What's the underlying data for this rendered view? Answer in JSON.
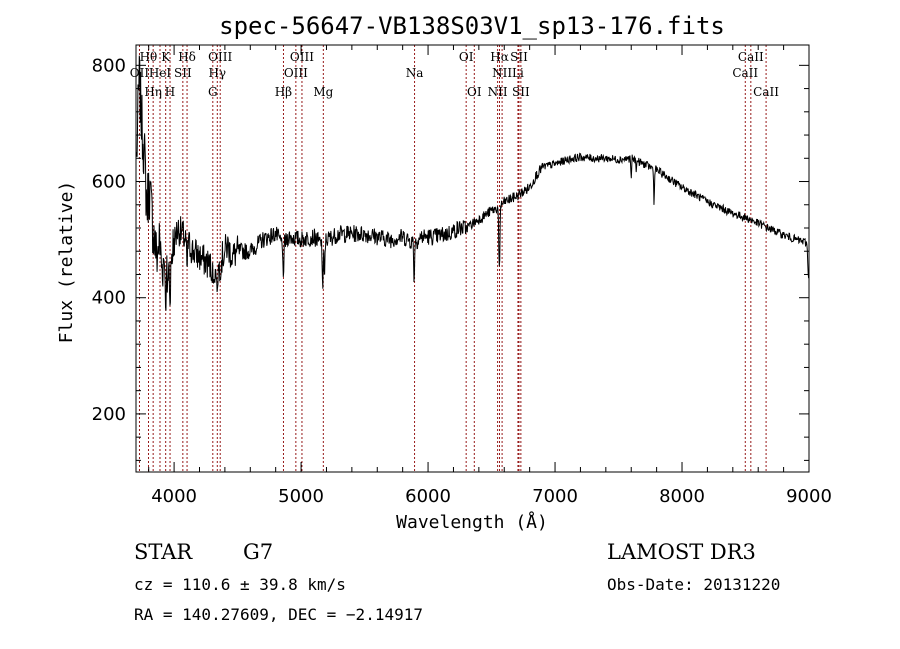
{
  "chart_data": {
    "type": "line",
    "title": "spec-56647-VB138S03V1_sp13-176.fits",
    "xlabel": "Wavelength (Å)",
    "ylabel": "Flux (relative)",
    "xlim": [
      3700,
      9000
    ],
    "ylim": [
      100,
      835
    ],
    "x_ticks": [
      4000,
      5000,
      6000,
      7000,
      8000,
      9000
    ],
    "y_ticks": [
      200,
      400,
      600,
      800
    ],
    "grid": false,
    "line_color": "#000000",
    "marker_color": "#8b0000",
    "spectrum_anchors": [
      [
        3705,
        640
      ],
      [
        3725,
        780
      ],
      [
        3745,
        700
      ],
      [
        3765,
        650
      ],
      [
        3785,
        560
      ],
      [
        3805,
        590
      ],
      [
        3825,
        540
      ],
      [
        3845,
        500
      ],
      [
        3865,
        470
      ],
      [
        3885,
        500
      ],
      [
        3905,
        450
      ],
      [
        3925,
        470
      ],
      [
        3945,
        430
      ],
      [
        3965,
        450
      ],
      [
        3985,
        480
      ],
      [
        4005,
        500
      ],
      [
        4030,
        520
      ],
      [
        4060,
        510
      ],
      [
        4090,
        500
      ],
      [
        4120,
        490
      ],
      [
        4150,
        480
      ],
      [
        4200,
        470
      ],
      [
        4260,
        460
      ],
      [
        4300,
        450
      ],
      [
        4340,
        440
      ],
      [
        4380,
        470
      ],
      [
        4420,
        490
      ],
      [
        4460,
        470
      ],
      [
        4500,
        480
      ],
      [
        4600,
        480
      ],
      [
        4700,
        500
      ],
      [
        4800,
        510
      ],
      [
        4860,
        490
      ],
      [
        4900,
        505
      ],
      [
        5000,
        500
      ],
      [
        5100,
        505
      ],
      [
        5170,
        490
      ],
      [
        5200,
        500
      ],
      [
        5300,
        510
      ],
      [
        5400,
        510
      ],
      [
        5500,
        510
      ],
      [
        5600,
        505
      ],
      [
        5700,
        500
      ],
      [
        5800,
        505
      ],
      [
        5890,
        495
      ],
      [
        5950,
        505
      ],
      [
        6050,
        505
      ],
      [
        6150,
        510
      ],
      [
        6250,
        520
      ],
      [
        6300,
        520
      ],
      [
        6400,
        535
      ],
      [
        6500,
        550
      ],
      [
        6560,
        555
      ],
      [
        6600,
        565
      ],
      [
        6700,
        575
      ],
      [
        6800,
        590
      ],
      [
        6850,
        610
      ],
      [
        6900,
        625
      ],
      [
        7000,
        630
      ],
      [
        7100,
        638
      ],
      [
        7200,
        642
      ],
      [
        7300,
        640
      ],
      [
        7400,
        640
      ],
      [
        7500,
        638
      ],
      [
        7600,
        640
      ],
      [
        7700,
        630
      ],
      [
        7800,
        620
      ],
      [
        7900,
        605
      ],
      [
        8000,
        590
      ],
      [
        8100,
        578
      ],
      [
        8200,
        565
      ],
      [
        8300,
        555
      ],
      [
        8400,
        545
      ],
      [
        8500,
        538
      ],
      [
        8600,
        528
      ],
      [
        8700,
        518
      ],
      [
        8800,
        508
      ],
      [
        8900,
        500
      ],
      [
        8980,
        495
      ],
      [
        9000,
        470
      ]
    ],
    "spectrum_dips": [
      [
        3934,
        360
      ],
      [
        3969,
        370
      ],
      [
        4102,
        440
      ],
      [
        4310,
        420
      ],
      [
        4340,
        400
      ],
      [
        4861,
        420
      ],
      [
        5170,
        400
      ],
      [
        5184,
        420
      ],
      [
        5890,
        415
      ],
      [
        6560,
        445
      ],
      [
        6563,
        450
      ],
      [
        7600,
        600
      ],
      [
        7640,
        618
      ],
      [
        7780,
        555
      ],
      [
        9000,
        420
      ]
    ],
    "lines": [
      {
        "name": "OII",
        "wave": 3727,
        "row": 2
      },
      {
        "name": "Hθ",
        "wave": 3798,
        "row": 1
      },
      {
        "name": "Hη",
        "wave": 3835,
        "row": 3
      },
      {
        "name": "HeI",
        "wave": 3889,
        "row": 2
      },
      {
        "name": "K",
        "wave": 3934,
        "row": 1
      },
      {
        "name": "H",
        "wave": 3968,
        "row": 3
      },
      {
        "name": "SII",
        "wave": 4069,
        "row": 2
      },
      {
        "name": "Hδ",
        "wave": 4102,
        "row": 1
      },
      {
        "name": "G",
        "wave": 4305,
        "row": 3
      },
      {
        "name": "Hγ",
        "wave": 4340,
        "row": 2
      },
      {
        "name": "OIII",
        "wave": 4363,
        "row": 1
      },
      {
        "name": "Hβ",
        "wave": 4861,
        "row": 3
      },
      {
        "name": "OIII",
        "wave": 4959,
        "row": 2
      },
      {
        "name": "OIII",
        "wave": 5007,
        "row": 1
      },
      {
        "name": "Mg",
        "wave": 5175,
        "row": 3
      },
      {
        "name": "Na",
        "wave": 5894,
        "row": 2
      },
      {
        "name": "OI",
        "wave": 6300,
        "row": 1
      },
      {
        "name": "OI",
        "wave": 6364,
        "row": 3
      },
      {
        "name": "NII",
        "wave": 6548,
        "row": 3
      },
      {
        "name": "Hα",
        "wave": 6563,
        "row": 1
      },
      {
        "name": "NII",
        "wave": 6583,
        "row": 2
      },
      {
        "name": "Li",
        "wave": 6708,
        "row": 2
      },
      {
        "name": "SII",
        "wave": 6716,
        "row": 1
      },
      {
        "name": "SII",
        "wave": 6731,
        "row": 3
      },
      {
        "name": "CaII",
        "wave": 8498,
        "row": 2
      },
      {
        "name": "CaII",
        "wave": 8542,
        "row": 1
      },
      {
        "name": "CaII",
        "wave": 8662,
        "row": 3
      }
    ]
  },
  "info": {
    "class_label": "STAR",
    "subclass": "G7",
    "survey": "LAMOST DR3",
    "cz": "cz = 110.6 ± 39.8 km/s",
    "obs_date": "Obs-Date: 20131220",
    "radec": "RA = 140.27609, DEC =  −2.14917"
  }
}
